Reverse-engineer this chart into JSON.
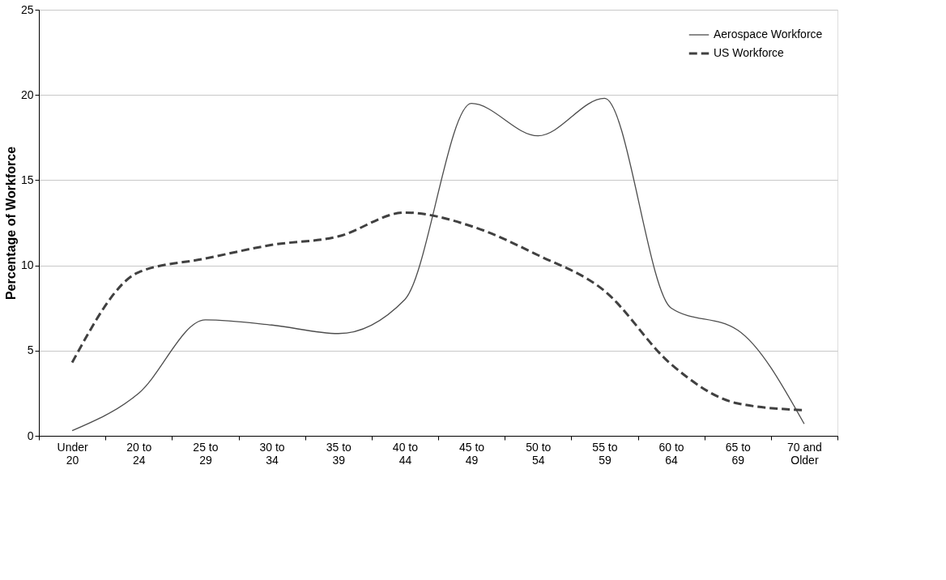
{
  "chart_data": {
    "type": "line",
    "ylabel": "Percentage of Workforce",
    "categories": [
      "Under 20",
      "20 to 24",
      "25 to 29",
      "30 to 34",
      "35 to 39",
      "40 to 44",
      "45 to 49",
      "50 to 54",
      "55 to 59",
      "60 to 64",
      "65 to 69",
      "70 and Older"
    ],
    "series": [
      {
        "name": "Aerospace Workforce",
        "color": "#4d4d4d",
        "line_style": "solid",
        "values": [
          0.3,
          2.5,
          6.8,
          6.5,
          6.0,
          8.0,
          19.5,
          17.6,
          19.8,
          7.5,
          6.2,
          0.7
        ]
      },
      {
        "name": "US Workforce",
        "color": "#404040",
        "line_style": "dashed",
        "values": [
          4.3,
          9.6,
          10.4,
          11.2,
          11.7,
          13.1,
          12.3,
          10.6,
          8.5,
          4.2,
          1.9,
          1.5
        ]
      }
    ],
    "ylim": [
      0,
      25
    ],
    "yticks": [
      0,
      5,
      10,
      15,
      20,
      25
    ],
    "grid": "y",
    "legend": "top right",
    "marker": "none"
  }
}
